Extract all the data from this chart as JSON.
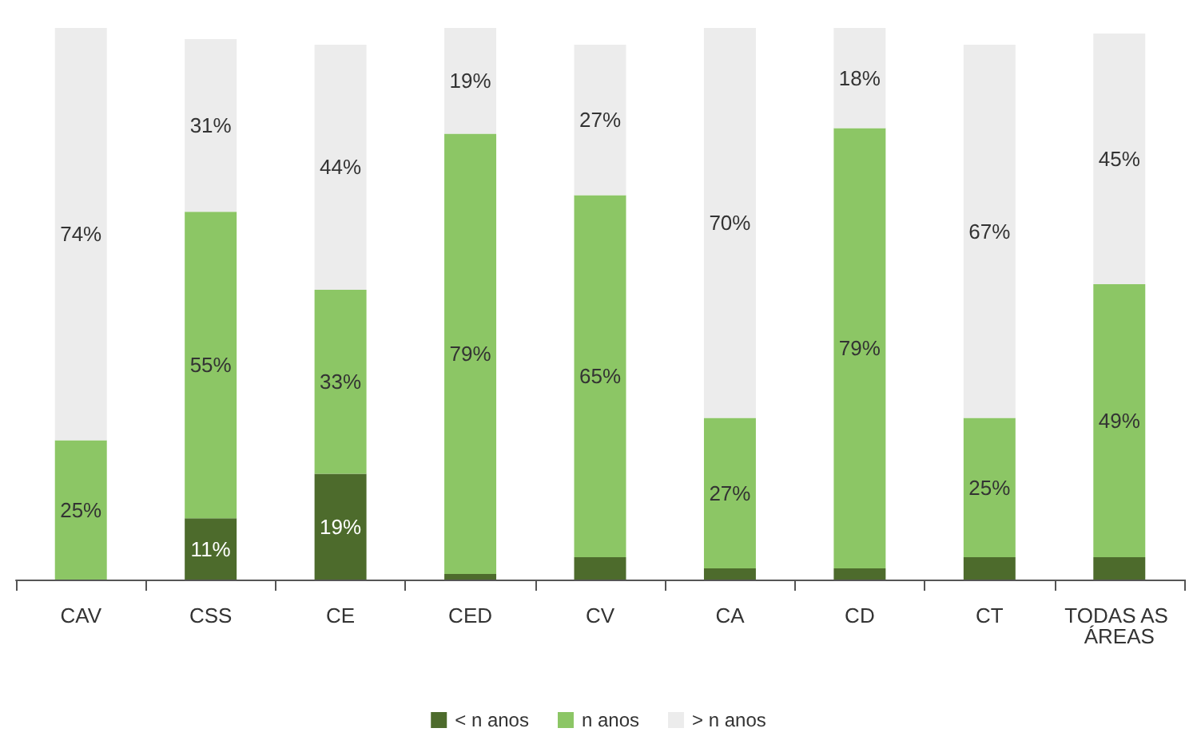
{
  "chart_data": {
    "type": "bar",
    "stacked": true,
    "categories": [
      "CAV",
      "CSS",
      "CE",
      "CED",
      "CV",
      "CA",
      "CD",
      "CT",
      "TODAS AS ÁREAS"
    ],
    "series": [
      {
        "name": "< n anos",
        "color": "#4d6b2c",
        "values": [
          0,
          11,
          19,
          1,
          4,
          2,
          2,
          4,
          4
        ],
        "value_labels": [
          null,
          "11%",
          "19%",
          null,
          null,
          null,
          null,
          null,
          null
        ]
      },
      {
        "name": "n anos",
        "color": "#8cc665",
        "values": [
          25,
          55,
          33,
          79,
          65,
          27,
          79,
          25,
          49
        ],
        "value_labels": [
          "25%",
          "55%",
          "33%",
          "79%",
          "65%",
          "27%",
          "79%",
          "25%",
          "49%"
        ]
      },
      {
        "name": "> n anos",
        "color": "#ececec",
        "values": [
          74,
          31,
          44,
          19,
          27,
          70,
          18,
          67,
          45
        ],
        "value_labels": [
          "74%",
          "31%",
          "44%",
          "19%",
          "27%",
          "70%",
          "18%",
          "67%",
          "45%"
        ]
      }
    ],
    "ylim": [
      0,
      100
    ],
    "tick_labels": "x",
    "legend": "bottom"
  }
}
